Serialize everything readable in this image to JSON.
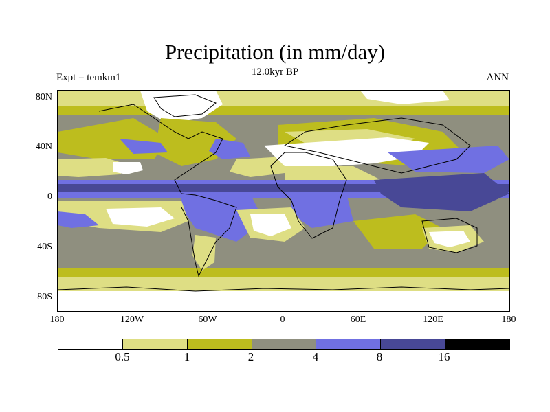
{
  "title": "Precipitation (in mm/day)",
  "subtitle": "12.0kyr BP",
  "left_label": "Expt = temkm1",
  "right_label": "ANN",
  "lat_labels": [
    "80N",
    "40N",
    "0",
    "40S",
    "80S"
  ],
  "lon_labels": [
    "180",
    "120W",
    "60W",
    "0",
    "60E",
    "120E",
    "180"
  ],
  "colorbar": {
    "colors": [
      "#ffffff",
      "#dede84",
      "#bdbd1e",
      "#8f8f7f",
      "#7070e2",
      "#484896",
      "#000000"
    ],
    "labels": [
      "0.5",
      "1",
      "2",
      "4",
      "8",
      "16"
    ]
  }
}
